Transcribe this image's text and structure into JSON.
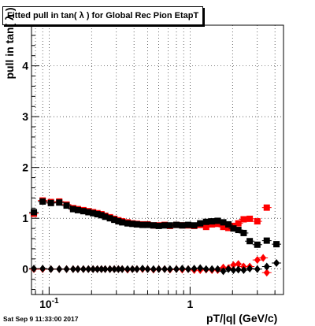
{
  "chart_data": {
    "type": "scatter",
    "title": "Fitted pull in tan( λ ) for Global Rec Pion EtapT",
    "xlabel": "pT/|q| (GeV/c)",
    "ylabel": "pull in tan( λ )",
    "x_scale": "log",
    "xlim": [
      0.075,
      4.6
    ],
    "ylim": [
      -0.5,
      4.8
    ],
    "x_tick_labels": [
      "10^-1",
      "1"
    ],
    "y_tick_labels": [
      "0",
      "1",
      "2",
      "3",
      "4"
    ],
    "grid": true,
    "footer": "Sat Sep  9 11:33:00 2017",
    "series": [
      {
        "color": "#ff0000",
        "marker": "square",
        "points": [
          [
            0.078,
            1.09
          ],
          [
            0.09,
            1.35
          ],
          [
            0.103,
            1.32
          ],
          [
            0.118,
            1.33
          ],
          [
            0.133,
            1.27
          ],
          [
            0.148,
            1.2
          ],
          [
            0.16,
            1.18
          ],
          [
            0.175,
            1.16
          ],
          [
            0.19,
            1.14
          ],
          [
            0.205,
            1.12
          ],
          [
            0.22,
            1.1
          ],
          [
            0.235,
            1.08
          ],
          [
            0.25,
            1.05
          ],
          [
            0.27,
            1.02
          ],
          [
            0.29,
            0.99
          ],
          [
            0.31,
            0.96
          ],
          [
            0.33,
            0.94
          ],
          [
            0.36,
            0.92
          ],
          [
            0.39,
            0.9
          ],
          [
            0.42,
            0.89
          ],
          [
            0.46,
            0.88
          ],
          [
            0.5,
            0.88
          ],
          [
            0.55,
            0.86
          ],
          [
            0.6,
            0.86
          ],
          [
            0.66,
            0.87
          ],
          [
            0.72,
            0.85
          ],
          [
            0.8,
            0.87
          ],
          [
            0.88,
            0.86
          ],
          [
            0.97,
            0.86
          ],
          [
            1.07,
            0.85
          ],
          [
            1.18,
            0.87
          ],
          [
            1.3,
            0.83
          ],
          [
            1.43,
            0.88
          ],
          [
            1.57,
            0.89
          ],
          [
            1.72,
            0.83
          ],
          [
            1.87,
            0.81
          ],
          [
            2.03,
            0.85
          ],
          [
            2.2,
            0.9
          ],
          [
            2.4,
            0.98
          ],
          [
            2.65,
            0.99
          ],
          [
            3.0,
            0.94
          ],
          [
            3.5,
            1.21
          ]
        ]
      },
      {
        "color": "#000000",
        "marker": "square",
        "points": [
          [
            0.078,
            1.12
          ],
          [
            0.09,
            1.33
          ],
          [
            0.103,
            1.3
          ],
          [
            0.118,
            1.31
          ],
          [
            0.133,
            1.25
          ],
          [
            0.148,
            1.18
          ],
          [
            0.16,
            1.16
          ],
          [
            0.175,
            1.14
          ],
          [
            0.19,
            1.12
          ],
          [
            0.205,
            1.1
          ],
          [
            0.22,
            1.08
          ],
          [
            0.235,
            1.06
          ],
          [
            0.25,
            1.03
          ],
          [
            0.27,
            1.0
          ],
          [
            0.29,
            0.97
          ],
          [
            0.31,
            0.94
          ],
          [
            0.33,
            0.92
          ],
          [
            0.36,
            0.9
          ],
          [
            0.39,
            0.89
          ],
          [
            0.42,
            0.88
          ],
          [
            0.46,
            0.87
          ],
          [
            0.5,
            0.87
          ],
          [
            0.55,
            0.86
          ],
          [
            0.6,
            0.85
          ],
          [
            0.66,
            0.86
          ],
          [
            0.72,
            0.86
          ],
          [
            0.8,
            0.87
          ],
          [
            0.88,
            0.86
          ],
          [
            0.97,
            0.87
          ],
          [
            1.07,
            0.86
          ],
          [
            1.18,
            0.9
          ],
          [
            1.3,
            0.93
          ],
          [
            1.43,
            0.94
          ],
          [
            1.57,
            0.95
          ],
          [
            1.72,
            0.92
          ],
          [
            1.87,
            0.88
          ],
          [
            2.03,
            0.8
          ],
          [
            2.2,
            0.77
          ],
          [
            2.4,
            0.71
          ],
          [
            2.65,
            0.55
          ],
          [
            3.0,
            0.48
          ],
          [
            3.5,
            0.56
          ],
          [
            4.1,
            0.49
          ]
        ]
      },
      {
        "color": "#ff0000",
        "marker": "diamond",
        "points": [
          [
            0.078,
            0.0
          ],
          [
            0.09,
            0.0
          ],
          [
            0.103,
            0.0
          ],
          [
            0.118,
            0.0
          ],
          [
            0.133,
            0.0
          ],
          [
            0.148,
            0.0
          ],
          [
            0.16,
            0.0
          ],
          [
            0.175,
            0.0
          ],
          [
            0.19,
            0.0
          ],
          [
            0.205,
            0.0
          ],
          [
            0.22,
            0.0
          ],
          [
            0.235,
            0.0
          ],
          [
            0.25,
            0.0
          ],
          [
            0.27,
            0.0
          ],
          [
            0.29,
            0.0
          ],
          [
            0.31,
            0.0
          ],
          [
            0.33,
            0.0
          ],
          [
            0.36,
            -0.01
          ],
          [
            0.39,
            0.0
          ],
          [
            0.42,
            0.0
          ],
          [
            0.46,
            0.0
          ],
          [
            0.5,
            0.0
          ],
          [
            0.55,
            -0.01
          ],
          [
            0.6,
            0.0
          ],
          [
            0.66,
            0.0
          ],
          [
            0.72,
            -0.01
          ],
          [
            0.8,
            0.0
          ],
          [
            0.88,
            -0.01
          ],
          [
            0.97,
            0.0
          ],
          [
            1.07,
            -0.02
          ],
          [
            1.18,
            -0.02
          ],
          [
            1.3,
            -0.01
          ],
          [
            1.43,
            -0.02
          ],
          [
            1.57,
            -0.02
          ],
          [
            1.72,
            0.03
          ],
          [
            1.87,
            0.02
          ],
          [
            2.03,
            0.08
          ],
          [
            2.2,
            0.1
          ],
          [
            2.4,
            0.05
          ],
          [
            2.65,
            0.05
          ],
          [
            3.0,
            0.18
          ],
          [
            3.3,
            0.22
          ],
          [
            3.5,
            -0.07
          ]
        ]
      },
      {
        "color": "#000000",
        "marker": "diamond",
        "points": [
          [
            0.078,
            0.01
          ],
          [
            0.09,
            0.01
          ],
          [
            0.103,
            0.0
          ],
          [
            0.118,
            0.0
          ],
          [
            0.133,
            0.0
          ],
          [
            0.148,
            0.0
          ],
          [
            0.16,
            0.0
          ],
          [
            0.175,
            0.0
          ],
          [
            0.19,
            0.0
          ],
          [
            0.205,
            0.0
          ],
          [
            0.22,
            0.0
          ],
          [
            0.235,
            0.0
          ],
          [
            0.25,
            0.0
          ],
          [
            0.27,
            0.0
          ],
          [
            0.29,
            0.0
          ],
          [
            0.31,
            0.0
          ],
          [
            0.33,
            0.0
          ],
          [
            0.36,
            0.0
          ],
          [
            0.39,
            0.0
          ],
          [
            0.42,
            0.0
          ],
          [
            0.46,
            0.01
          ],
          [
            0.5,
            0.0
          ],
          [
            0.55,
            0.0
          ],
          [
            0.6,
            0.0
          ],
          [
            0.66,
            0.0
          ],
          [
            0.72,
            0.0
          ],
          [
            0.8,
            0.0
          ],
          [
            0.88,
            0.01
          ],
          [
            0.97,
            0.0
          ],
          [
            1.07,
            0.01
          ],
          [
            1.18,
            0.02
          ],
          [
            1.3,
            0.0
          ],
          [
            1.43,
            0.0
          ],
          [
            1.57,
            0.0
          ],
          [
            1.72,
            -0.04
          ],
          [
            1.87,
            0.0
          ],
          [
            2.03,
            -0.02
          ],
          [
            2.2,
            -0.01
          ],
          [
            2.4,
            -0.02
          ],
          [
            2.65,
            0.01
          ],
          [
            3.0,
            0.0
          ],
          [
            3.5,
            0.05
          ],
          [
            4.1,
            0.12
          ]
        ]
      }
    ]
  }
}
